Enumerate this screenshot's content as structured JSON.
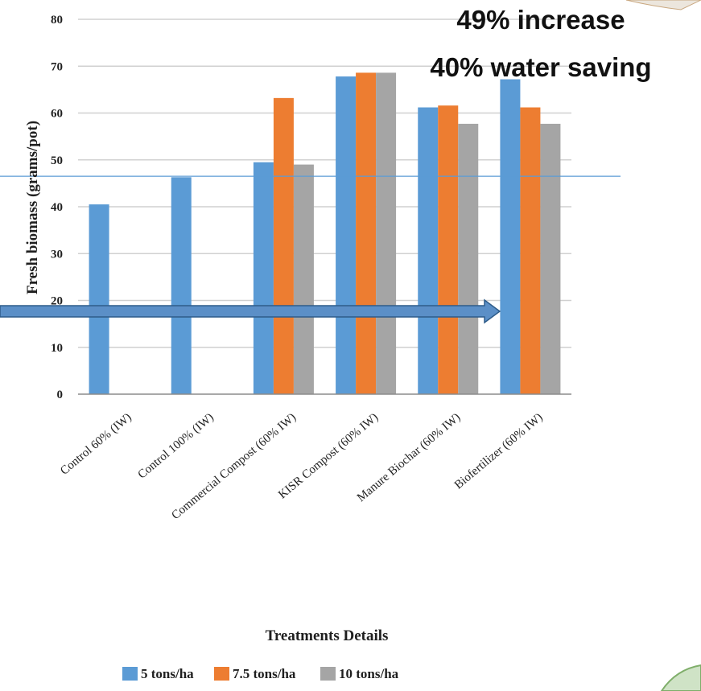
{
  "chart_data": {
    "type": "bar",
    "xlabel": "Treatments Details",
    "ylabel": "Fresh biomass (grams/pot)",
    "ylim": [
      0,
      80
    ],
    "yticks": [
      0,
      10,
      20,
      30,
      40,
      50,
      60,
      70,
      80
    ],
    "grid": true,
    "legend_position": "bottom",
    "categories": [
      "Control 60% (IW)",
      "Control 100% (IW)",
      "Commercial Compost (60% IW)",
      "KISR Compost (60% IW)",
      "Manure Biochar (60% IW)",
      "Biofertilizer (60% IW)"
    ],
    "series": [
      {
        "name": "5 tons/ha",
        "color": "#5b9bd5",
        "values": [
          40.5,
          46.3,
          49.5,
          67.8,
          61.2,
          67.2
        ]
      },
      {
        "name": "7.5 tons/ha",
        "color": "#ed7d31",
        "values": [
          null,
          null,
          63.2,
          68.6,
          61.6,
          61.2
        ]
      },
      {
        "name": "10 tons/ha",
        "color": "#a5a5a5",
        "values": [
          null,
          null,
          49.0,
          68.6,
          57.7,
          57.7
        ]
      }
    ],
    "reference_line_value": 46.5,
    "annotations": [
      "49% increase",
      "40% water saving"
    ]
  },
  "colors": {
    "grid": "#d0d0d0",
    "axis": "#8c8c8c",
    "reference_line": "#5b9bd5",
    "arrow_fill": "#5b8fc7",
    "arrow_stroke": "#2e5c8a"
  }
}
